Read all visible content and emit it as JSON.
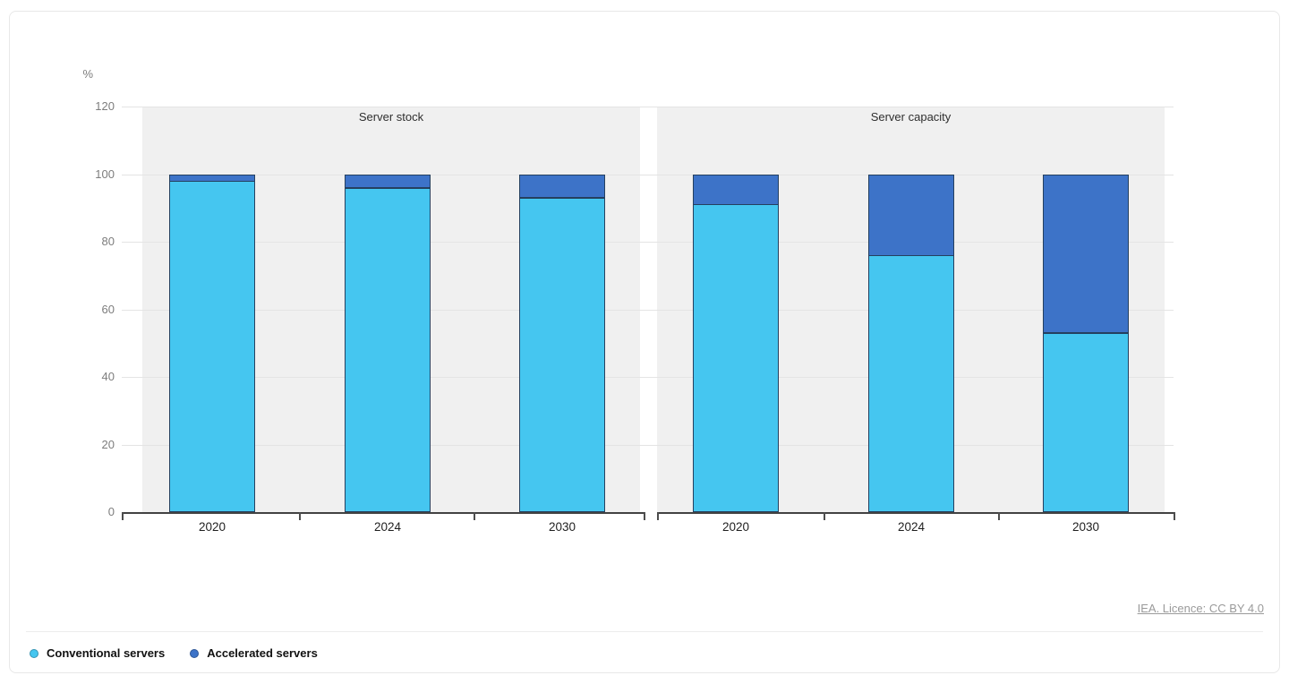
{
  "unit": "%",
  "footer": {
    "license_link": "IEA. Licence: CC BY 4.0"
  },
  "legend": [
    {
      "label": "Conventional servers",
      "color": "#45C6F0"
    },
    {
      "label": "Accelerated servers",
      "color": "#3D73C8"
    }
  ],
  "chart_data": {
    "type": "bar",
    "stacked": true,
    "orientation": "vertical",
    "unit": "%",
    "ylabel": "%",
    "ylim": [
      0,
      120
    ],
    "yticks": [
      0,
      20,
      40,
      60,
      80,
      100,
      120
    ],
    "grid": true,
    "legend_position": "bottom-left",
    "bar_colors": {
      "Conventional servers": "#45C6F0",
      "Accelerated servers": "#3D73C8"
    },
    "panels": [
      {
        "title": "Server stock",
        "categories": [
          "2020",
          "2024",
          "2030"
        ],
        "series": [
          {
            "name": "Conventional servers",
            "color": "#45C6F0",
            "values": [
              98,
              96,
              93
            ]
          },
          {
            "name": "Accelerated servers",
            "color": "#3D73C8",
            "values": [
              2,
              4,
              7
            ]
          }
        ]
      },
      {
        "title": "Server capacity",
        "categories": [
          "2020",
          "2024",
          "2030"
        ],
        "series": [
          {
            "name": "Conventional servers",
            "color": "#45C6F0",
            "values": [
              91,
              76,
              53
            ]
          },
          {
            "name": "Accelerated servers",
            "color": "#3D73C8",
            "values": [
              9,
              24,
              47
            ]
          }
        ]
      }
    ],
    "source": "IEA. Licence: CC BY 4.0"
  }
}
